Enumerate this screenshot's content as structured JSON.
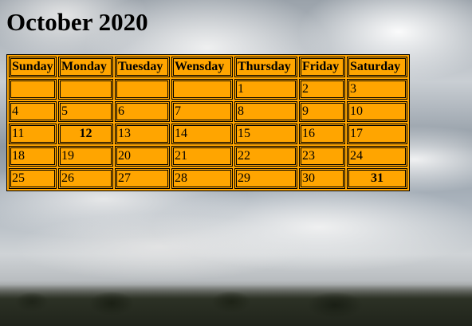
{
  "calendar": {
    "title": "October 2020",
    "weekdays": [
      "Sunday",
      "Monday",
      "Tuesday",
      "Wensday",
      "Thursday",
      "Friday",
      "Saturday"
    ],
    "weeks": [
      [
        "",
        "",
        "",
        "",
        "1",
        "2",
        "3"
      ],
      [
        "4",
        "5",
        "6",
        "7",
        "8",
        "9",
        "10"
      ],
      [
        "11",
        "12",
        "13",
        "14",
        "15",
        "16",
        "17"
      ],
      [
        "18",
        "19",
        "20",
        "21",
        "22",
        "23",
        "24"
      ],
      [
        "25",
        "26",
        "27",
        "28",
        "29",
        "30",
        "31"
      ]
    ],
    "highlighted_days": [
      "12",
      "31"
    ]
  },
  "colors": {
    "cell_background": "#ffa500",
    "border": "#000000"
  }
}
